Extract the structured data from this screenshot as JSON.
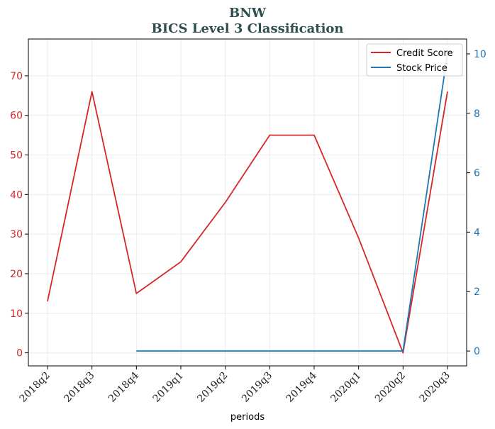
{
  "chart_data": {
    "type": "line",
    "title": "BNW",
    "subtitle": "BICS Level 3 Classification",
    "xlabel": "periods",
    "categories": [
      "2018q2",
      "2018q3",
      "2018q4",
      "2019q1",
      "2019q2",
      "2019q3",
      "2019q4",
      "2020q1",
      "2020q2",
      "2020q3"
    ],
    "series": [
      {
        "name": "Credit Score",
        "axis": "left",
        "color": "#d62728",
        "values": [
          13,
          66,
          15,
          23,
          38,
          55,
          55,
          29,
          0,
          66
        ]
      },
      {
        "name": "Stock Price",
        "axis": "right",
        "color": "#1f77b4",
        "values": [
          null,
          null,
          0,
          0,
          0,
          0,
          0,
          0,
          0,
          10
        ]
      }
    ],
    "y_left": {
      "ylim": [
        -3.3,
        79.3
      ],
      "ticks": [
        0,
        10,
        20,
        30,
        40,
        50,
        60,
        70
      ],
      "color": "#d62728"
    },
    "y_right": {
      "ylim": [
        -0.5,
        10.5
      ],
      "ticks": [
        0,
        2,
        4,
        6,
        8,
        10
      ],
      "color": "#1f77b4"
    },
    "grid": true,
    "legend": "top-right"
  }
}
